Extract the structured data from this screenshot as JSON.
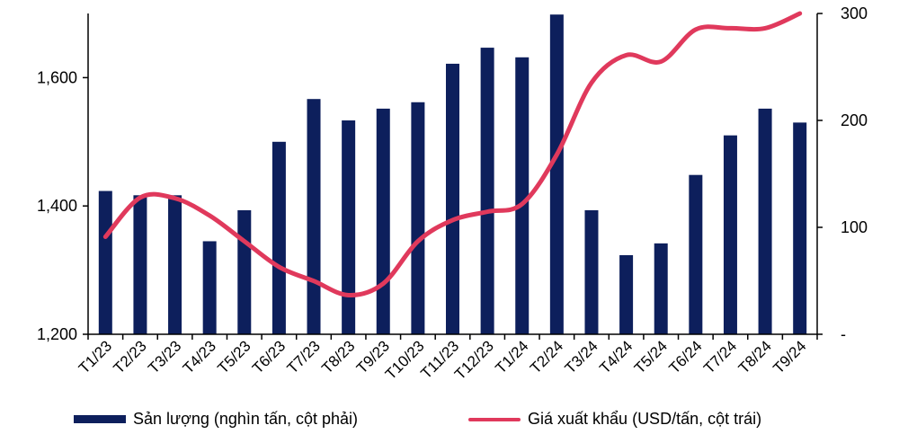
{
  "colors": {
    "bars": "#0d1f5c",
    "line": "#e0395c",
    "axis": "#000000"
  },
  "chart_data": {
    "type": "bar+line",
    "categories": [
      "T1/23",
      "T2/23",
      "T3/23",
      "T4/23",
      "T5/23",
      "T6/23",
      "T7/23",
      "T8/23",
      "T9/23",
      "T10/23",
      "T11/23",
      "T12/23",
      "T1/24",
      "T2/24",
      "T3/24",
      "T4/24",
      "T5/24",
      "T6/24",
      "T7/24",
      "T8/24",
      "T9/24"
    ],
    "series": [
      {
        "name": "Sản lượng (nghìn tấn, cột phải)",
        "type": "bar",
        "axis": "right",
        "values": [
          134,
          130,
          130,
          87,
          116,
          180,
          220,
          200,
          211,
          217,
          253,
          268,
          259,
          299,
          116,
          74,
          85,
          149,
          186,
          211,
          198
        ]
      },
      {
        "name": "Giá xuất khẩu (USD/tấn, cột trái)",
        "type": "line",
        "axis": "left",
        "values": [
          1352,
          1413,
          1412,
          1385,
          1345,
          1305,
          1283,
          1261,
          1279,
          1345,
          1378,
          1391,
          1403,
          1480,
          1592,
          1635,
          1625,
          1675,
          1677,
          1677,
          1700
        ]
      }
    ],
    "left_axis": {
      "ticks": [
        "1,200",
        "1,400",
        "1,600"
      ],
      "tick_values": [
        1200,
        1400,
        1600
      ],
      "ylim": [
        1200,
        1700
      ]
    },
    "right_axis": {
      "ticks": [
        "-",
        "100",
        "200",
        "300"
      ],
      "tick_values": [
        0,
        100,
        200,
        300
      ],
      "ylim": [
        0,
        300
      ]
    },
    "legend_position": "bottom",
    "grid": false
  }
}
